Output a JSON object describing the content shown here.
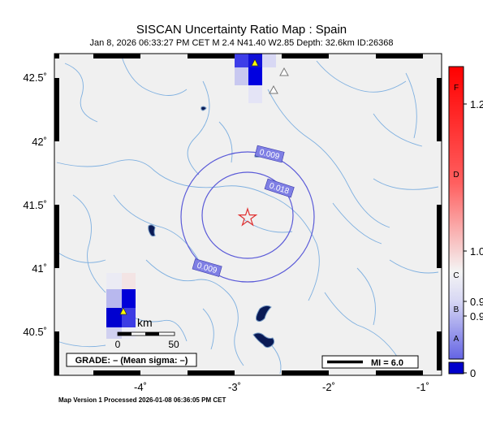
{
  "title": "SISCAN Uncertainty Ratio Map : Spain",
  "subtitle": "Jan  8, 2026 06:33:27 PM CET   M 2.4   N41.40 W2.85   Depth: 32.6km   ID:26368",
  "footer": "Map Version 1 Processed 2026-01-08 06:36:05 PM CET",
  "axes": {
    "lat_labels": [
      "42.5˚",
      "42˚",
      "41.5˚",
      "41˚",
      "40.5˚"
    ],
    "lon_labels": [
      "-4˚",
      "-3˚",
      "-2˚",
      "-1˚"
    ]
  },
  "contours": [
    {
      "label": "0.009",
      "color": "#5a5ad8"
    },
    {
      "label": "0.018",
      "color": "#5a5ad8"
    },
    {
      "label": "0.009",
      "color": "#5a5ad8"
    }
  ],
  "epicenter": {
    "lat": 41.4,
    "lon": -2.85,
    "marker": "star-icon",
    "color": "#e03030"
  },
  "stations": [
    {
      "type": "triangle",
      "fill": "#ffff00",
      "state": "recorded"
    },
    {
      "type": "triangle",
      "fill": "#ffffff",
      "state": "no-data"
    },
    {
      "type": "triangle",
      "fill": "#ffffff",
      "state": "no-data"
    },
    {
      "type": "triangle",
      "fill": "#ffff00",
      "state": "recorded"
    }
  ],
  "scale_bar": {
    "ticks": [
      "0",
      "50"
    ],
    "unit": "km"
  },
  "grade_box": "GRADE: – (Mean sigma: –)",
  "mi_legend": "MI = 6.0",
  "colorbar": {
    "letters": [
      "F",
      "D",
      "C",
      "B",
      "A"
    ],
    "values": [
      "1.2",
      "1.0",
      "0.9",
      "0.9",
      "0"
    ],
    "colors": {
      "top": "#ff0000",
      "mid": "#f4f4f4",
      "bottom": "#0000cc"
    }
  },
  "colors": {
    "land": "#f0f0f0",
    "rivers": "#7fb0e0",
    "water": "#000033"
  }
}
